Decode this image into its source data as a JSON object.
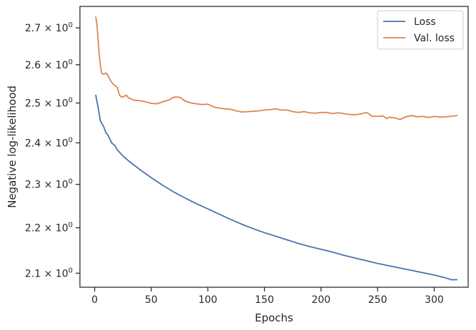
{
  "chart_data": {
    "type": "line",
    "xlabel": "Epochs",
    "ylabel": "Negative log-likelihood",
    "yscale": "log",
    "xlim": [
      -13,
      330
    ],
    "ylim": [
      2.07,
      2.76
    ],
    "xticks": [
      {
        "value": 0,
        "label": "0"
      },
      {
        "value": 50,
        "label": "50"
      },
      {
        "value": 100,
        "label": "100"
      },
      {
        "value": 150,
        "label": "150"
      },
      {
        "value": 200,
        "label": "200"
      },
      {
        "value": 250,
        "label": "250"
      },
      {
        "value": 300,
        "label": "300"
      }
    ],
    "yticks": [
      {
        "value": 2.1,
        "mant": "2.1",
        "exp": "0"
      },
      {
        "value": 2.2,
        "mant": "2.2",
        "exp": "0"
      },
      {
        "value": 2.3,
        "mant": "2.3",
        "exp": "0"
      },
      {
        "value": 2.4,
        "mant": "2.4",
        "exp": "0"
      },
      {
        "value": 2.5,
        "mant": "2.5",
        "exp": "0"
      },
      {
        "value": 2.6,
        "mant": "2.6",
        "exp": "0"
      },
      {
        "value": 2.7,
        "mant": "2.7",
        "exp": "0"
      }
    ],
    "grid": false,
    "legend_position": "top-right",
    "series": [
      {
        "name": "Loss",
        "color": "#4c72b0",
        "x": [
          1,
          3,
          5,
          8,
          10,
          12,
          15,
          18,
          20,
          25,
          30,
          40,
          50,
          60,
          70,
          80,
          90,
          100,
          110,
          120,
          130,
          140,
          150,
          160,
          170,
          180,
          190,
          200,
          210,
          220,
          230,
          240,
          250,
          260,
          270,
          280,
          290,
          300,
          310,
          315,
          320
        ],
        "y": [
          2.52,
          2.49,
          2.455,
          2.44,
          2.425,
          2.418,
          2.4,
          2.393,
          2.383,
          2.368,
          2.356,
          2.335,
          2.316,
          2.298,
          2.282,
          2.268,
          2.255,
          2.243,
          2.231,
          2.219,
          2.208,
          2.198,
          2.189,
          2.181,
          2.173,
          2.165,
          2.158,
          2.152,
          2.146,
          2.139,
          2.133,
          2.127,
          2.121,
          2.116,
          2.111,
          2.106,
          2.101,
          2.096,
          2.09,
          2.086,
          2.086
        ]
      },
      {
        "name": "Val. loss",
        "color": "#dd8452",
        "x": [
          1,
          2,
          3,
          4,
          5,
          6,
          7,
          8,
          10,
          12,
          14,
          16,
          18,
          20,
          22,
          24,
          26,
          28,
          30,
          35,
          40,
          45,
          50,
          55,
          60,
          65,
          70,
          75,
          80,
          85,
          90,
          95,
          100,
          105,
          110,
          115,
          120,
          125,
          130,
          135,
          140,
          145,
          150,
          155,
          160,
          165,
          170,
          175,
          180,
          185,
          190,
          195,
          200,
          205,
          210,
          215,
          220,
          225,
          230,
          235,
          240,
          242,
          245,
          250,
          255,
          258,
          260,
          265,
          270,
          275,
          280,
          285,
          290,
          295,
          300,
          305,
          310,
          315,
          320
        ],
        "y": [
          2.73,
          2.71,
          2.67,
          2.63,
          2.6,
          2.58,
          2.575,
          2.575,
          2.578,
          2.57,
          2.558,
          2.55,
          2.545,
          2.54,
          2.52,
          2.515,
          2.517,
          2.52,
          2.513,
          2.507,
          2.506,
          2.503,
          2.499,
          2.498,
          2.503,
          2.507,
          2.515,
          2.515,
          2.505,
          2.5,
          2.498,
          2.496,
          2.497,
          2.49,
          2.487,
          2.485,
          2.484,
          2.48,
          2.477,
          2.478,
          2.479,
          2.48,
          2.482,
          2.483,
          2.485,
          2.482,
          2.482,
          2.478,
          2.476,
          2.478,
          2.475,
          2.474,
          2.476,
          2.476,
          2.473,
          2.475,
          2.473,
          2.471,
          2.47,
          2.472,
          2.476,
          2.473,
          2.466,
          2.466,
          2.467,
          2.46,
          2.464,
          2.462,
          2.458,
          2.465,
          2.468,
          2.465,
          2.466,
          2.463,
          2.466,
          2.464,
          2.465,
          2.466,
          2.468
        ]
      }
    ]
  }
}
